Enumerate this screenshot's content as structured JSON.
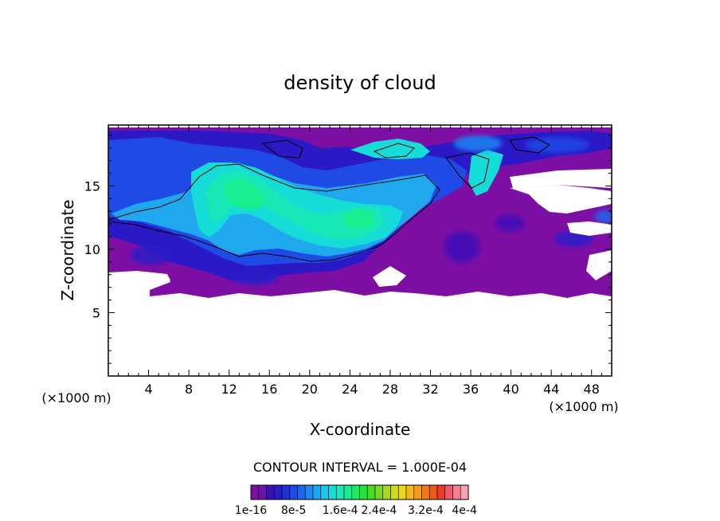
{
  "chart_data": {
    "type": "heatmap",
    "title": "density of cloud",
    "xlabel": "X-coordinate",
    "ylabel": "Z-coordinate",
    "x_unit_left": "(×1000 m)",
    "x_unit_right": "(×1000 m)",
    "xlim": [
      0,
      50
    ],
    "ylim": [
      0,
      19.8
    ],
    "x_ticks": [
      4,
      8,
      12,
      16,
      20,
      24,
      28,
      32,
      36,
      40,
      44,
      48
    ],
    "x_tick_labels": [
      "4",
      "8",
      "12",
      "16",
      "20",
      "24",
      "28",
      "32",
      "36",
      "40",
      "44",
      "48"
    ],
    "y_ticks": [
      5,
      10,
      15
    ],
    "y_tick_labels": [
      "5",
      "10",
      "15"
    ],
    "contour_interval_text": "CONTOUR INTERVAL = 1.000E-04",
    "colorbar": {
      "colors": [
        "#7e0fa5",
        "#6e12b0",
        "#3c10b8",
        "#2a1ec8",
        "#1f32d8",
        "#1f4ae6",
        "#1f66ee",
        "#1f86f2",
        "#1aa8f0",
        "#17c6ec",
        "#16dcd8",
        "#16e8b8",
        "#17ee90",
        "#18ec60",
        "#22e436",
        "#48dc24",
        "#7cd81e",
        "#aad81a",
        "#d2dc16",
        "#eed814",
        "#f5b814",
        "#f59a16",
        "#f27818",
        "#ee5a1c",
        "#ea3c26",
        "#ee5a6a",
        "#f48090",
        "#f7a4b0"
      ],
      "tick_labels": [
        "1e-16",
        "8e-5",
        "1.6e-4",
        "2.4e-4",
        "3.2e-4",
        "4e-4"
      ]
    }
  }
}
